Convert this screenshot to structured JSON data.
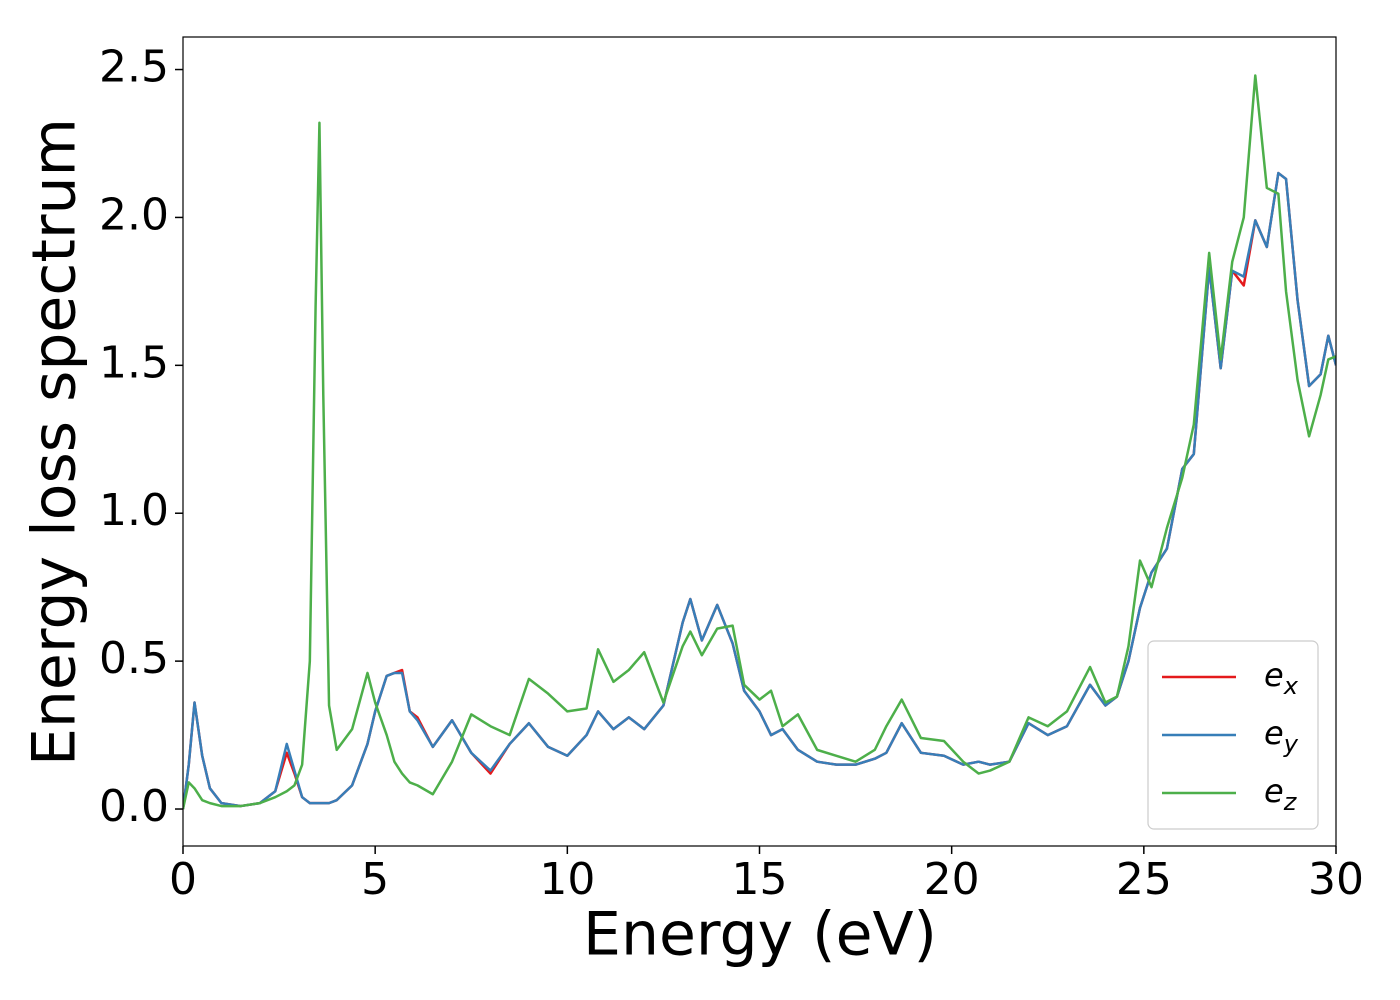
{
  "chart_data": {
    "type": "line",
    "xlabel": "Energy (eV)",
    "ylabel": "Energy loss spectrum",
    "x": [
      0,
      0.15,
      0.3,
      0.5,
      0.7,
      1.0,
      1.5,
      2.0,
      2.4,
      2.7,
      2.9,
      3.1,
      3.3,
      3.45,
      3.55,
      3.65,
      3.8,
      4.0,
      4.4,
      4.8,
      5.0,
      5.3,
      5.5,
      5.7,
      5.9,
      6.1,
      6.5,
      7.0,
      7.5,
      8.0,
      8.5,
      9.0,
      9.5,
      10.0,
      10.5,
      10.8,
      11.2,
      11.6,
      12.0,
      12.5,
      13.0,
      13.2,
      13.5,
      13.9,
      14.3,
      14.6,
      15.0,
      15.3,
      15.6,
      16.0,
      16.5,
      17.0,
      17.5,
      18.0,
      18.3,
      18.7,
      19.2,
      19.8,
      20.3,
      20.7,
      21.0,
      21.5,
      22.0,
      22.5,
      23.0,
      23.6,
      24.0,
      24.3,
      24.6,
      24.9,
      25.2,
      25.6,
      26.0,
      26.3,
      26.7,
      27.0,
      27.3,
      27.6,
      27.9,
      28.2,
      28.5,
      28.7,
      29.0,
      29.3,
      29.6,
      29.8,
      30.0
    ],
    "series": [
      {
        "name": "e_x",
        "color": "#e41a1c",
        "values": [
          0.0,
          0.15,
          0.36,
          0.18,
          0.07,
          0.02,
          0.01,
          0.02,
          0.06,
          0.19,
          0.12,
          0.04,
          0.02,
          0.02,
          0.02,
          0.02,
          0.02,
          0.03,
          0.08,
          0.22,
          0.33,
          0.45,
          0.46,
          0.47,
          0.33,
          0.31,
          0.21,
          0.3,
          0.19,
          0.12,
          0.22,
          0.29,
          0.21,
          0.18,
          0.25,
          0.33,
          0.27,
          0.31,
          0.27,
          0.35,
          0.63,
          0.71,
          0.57,
          0.69,
          0.56,
          0.4,
          0.33,
          0.25,
          0.27,
          0.2,
          0.16,
          0.15,
          0.15,
          0.17,
          0.19,
          0.29,
          0.19,
          0.18,
          0.15,
          0.16,
          0.15,
          0.16,
          0.29,
          0.25,
          0.28,
          0.42,
          0.35,
          0.38,
          0.5,
          0.68,
          0.8,
          0.88,
          1.15,
          1.2,
          1.83,
          1.49,
          1.82,
          1.77,
          1.99,
          1.9,
          2.15,
          2.13,
          1.72,
          1.43,
          1.47,
          1.6,
          1.5
        ]
      },
      {
        "name": "e_y",
        "color": "#377eb8",
        "values": [
          0.0,
          0.15,
          0.36,
          0.18,
          0.07,
          0.02,
          0.01,
          0.02,
          0.06,
          0.22,
          0.13,
          0.04,
          0.02,
          0.02,
          0.02,
          0.02,
          0.02,
          0.03,
          0.08,
          0.22,
          0.33,
          0.45,
          0.46,
          0.46,
          0.33,
          0.3,
          0.21,
          0.3,
          0.19,
          0.13,
          0.22,
          0.29,
          0.21,
          0.18,
          0.25,
          0.33,
          0.27,
          0.31,
          0.27,
          0.35,
          0.63,
          0.71,
          0.57,
          0.69,
          0.56,
          0.4,
          0.33,
          0.25,
          0.27,
          0.2,
          0.16,
          0.15,
          0.15,
          0.17,
          0.19,
          0.29,
          0.19,
          0.18,
          0.15,
          0.16,
          0.15,
          0.16,
          0.29,
          0.25,
          0.28,
          0.42,
          0.35,
          0.38,
          0.5,
          0.68,
          0.8,
          0.88,
          1.15,
          1.2,
          1.83,
          1.49,
          1.82,
          1.8,
          1.99,
          1.9,
          2.15,
          2.13,
          1.72,
          1.43,
          1.47,
          1.6,
          1.5
        ]
      },
      {
        "name": "e_z",
        "color": "#4daf4a",
        "values": [
          0.0,
          0.09,
          0.07,
          0.03,
          0.02,
          0.01,
          0.01,
          0.02,
          0.04,
          0.06,
          0.08,
          0.15,
          0.5,
          1.7,
          2.32,
          1.4,
          0.35,
          0.2,
          0.27,
          0.46,
          0.36,
          0.25,
          0.16,
          0.12,
          0.09,
          0.08,
          0.05,
          0.16,
          0.32,
          0.28,
          0.25,
          0.44,
          0.39,
          0.33,
          0.34,
          0.54,
          0.43,
          0.47,
          0.53,
          0.36,
          0.55,
          0.6,
          0.52,
          0.61,
          0.62,
          0.42,
          0.37,
          0.4,
          0.28,
          0.32,
          0.2,
          0.18,
          0.16,
          0.2,
          0.28,
          0.37,
          0.24,
          0.23,
          0.16,
          0.12,
          0.13,
          0.16,
          0.31,
          0.28,
          0.33,
          0.48,
          0.36,
          0.38,
          0.55,
          0.84,
          0.75,
          0.95,
          1.12,
          1.3,
          1.88,
          1.52,
          1.85,
          2.0,
          2.48,
          2.1,
          2.08,
          1.75,
          1.45,
          1.26,
          1.4,
          1.52,
          1.53
        ]
      }
    ],
    "xlim": [
      0,
      30
    ],
    "xticks": [
      0,
      5,
      10,
      15,
      20,
      25,
      30
    ],
    "ylim": [
      -0.125,
      2.61
    ],
    "yticks": [
      {
        "value": 0,
        "label": "0.0"
      },
      {
        "value": 0.5,
        "label": "0.5"
      },
      {
        "value": 1,
        "label": "1.0"
      },
      {
        "value": 1.5,
        "label": "1.5"
      },
      {
        "value": 2,
        "label": "2.0"
      },
      {
        "value": 2.5,
        "label": "2.5"
      }
    ],
    "legend": "lower right",
    "grid": false
  }
}
